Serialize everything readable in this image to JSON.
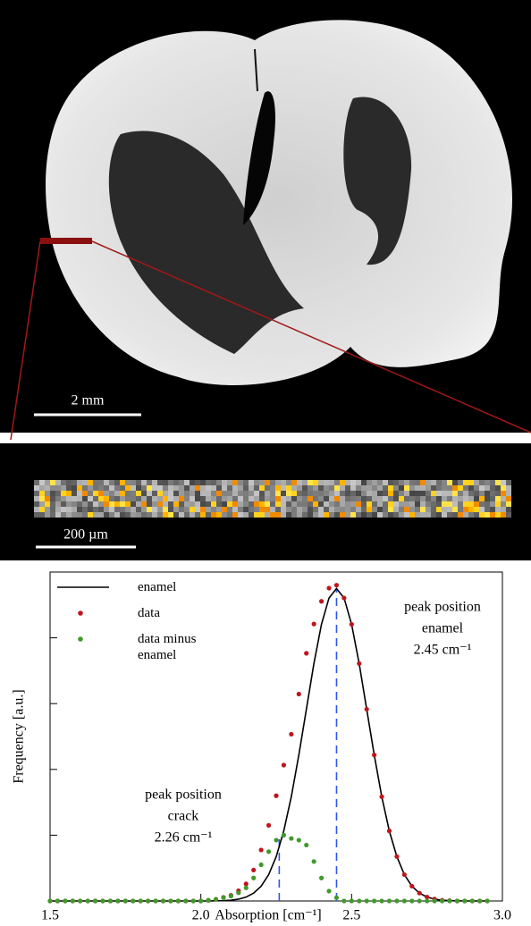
{
  "image": {
    "scale_bar": "2 mm"
  },
  "strip": {
    "scale_bar": "200 µm"
  },
  "chart_data": {
    "type": "scatter",
    "xlabel": "Absorption [cm⁻¹]",
    "ylabel": "Frequency [a.u.]",
    "xlim": [
      1.5,
      3.0
    ],
    "ylim": [
      0,
      1
    ],
    "xticks": [
      1.5,
      {
        "value": 2.0,
        "label": "2.0"
      },
      2.5,
      {
        "value": 3.0,
        "label": "3.0"
      }
    ],
    "yticks": [
      0.2,
      0.4,
      0.6,
      0.8
    ],
    "legend": "top-left",
    "x": [
      1.5,
      1.525,
      1.55,
      1.575,
      1.6,
      1.625,
      1.65,
      1.675,
      1.7,
      1.725,
      1.75,
      1.775,
      1.8,
      1.825,
      1.85,
      1.875,
      1.9,
      1.925,
      1.95,
      1.975,
      2.0,
      2.025,
      2.05,
      2.075,
      2.1,
      2.125,
      2.15,
      2.175,
      2.2,
      2.225,
      2.25,
      2.275,
      2.3,
      2.325,
      2.35,
      2.375,
      2.4,
      2.425,
      2.45,
      2.475,
      2.5,
      2.525,
      2.55,
      2.575,
      2.6,
      2.625,
      2.65,
      2.675,
      2.7,
      2.725,
      2.75,
      2.775,
      2.8,
      2.825,
      2.85,
      2.875,
      2.9,
      2.925,
      2.95
    ],
    "series": [
      {
        "name": "enamel",
        "color": "#000000",
        "style": "line",
        "values": [
          0,
          0,
          0,
          0,
          0,
          0,
          0,
          0,
          0,
          0,
          0,
          0,
          0,
          0,
          0,
          0,
          0,
          0,
          0,
          0,
          0,
          0,
          0.0004,
          0.001,
          0.0024,
          0.0055,
          0.0118,
          0.0238,
          0.045,
          0.08,
          0.135,
          0.213,
          0.317,
          0.444,
          0.583,
          0.722,
          0.841,
          0.921,
          0.95,
          0.921,
          0.841,
          0.722,
          0.583,
          0.444,
          0.317,
          0.213,
          0.135,
          0.08,
          0.045,
          0.024,
          0.012,
          0.0055,
          0.0024,
          0.001,
          0.0004,
          0,
          0,
          0,
          0
        ]
      },
      {
        "name": "data",
        "color": "#c0141c",
        "style": "dots",
        "values": [
          0,
          0,
          0,
          0,
          0,
          0,
          0,
          0,
          0,
          0,
          0,
          0,
          0,
          0,
          0,
          0,
          0,
          0,
          0,
          0,
          0,
          0.002,
          0.005,
          0.011,
          0.017,
          0.031,
          0.052,
          0.094,
          0.155,
          0.23,
          0.32,
          0.413,
          0.507,
          0.629,
          0.753,
          0.842,
          0.911,
          0.951,
          0.96,
          0.921,
          0.841,
          0.722,
          0.583,
          0.444,
          0.317,
          0.213,
          0.135,
          0.08,
          0.045,
          0.024,
          0.012,
          0.006,
          0.002,
          0.001,
          0,
          0,
          0,
          0,
          0
        ]
      },
      {
        "name": "data minus enamel",
        "color": "#3f9a2a",
        "style": "dots",
        "values": [
          0,
          0,
          0,
          0,
          0,
          0,
          0,
          0,
          0,
          0,
          0,
          0,
          0,
          0,
          0,
          0,
          0,
          0,
          0,
          0,
          0,
          0.002,
          0.005,
          0.01,
          0.015,
          0.025,
          0.04,
          0.07,
          0.11,
          0.15,
          0.185,
          0.2,
          0.19,
          0.185,
          0.17,
          0.12,
          0.07,
          0.03,
          0.01,
          0,
          0,
          0,
          0,
          0,
          0,
          0,
          0,
          0,
          0,
          0,
          0,
          0,
          0,
          0,
          0,
          0,
          0,
          0,
          0
        ]
      }
    ],
    "annotations": [
      {
        "lines": [
          "peak position",
          "enamel",
          "2.45 cm⁻¹"
        ],
        "x": 2.45,
        "y": 0.95,
        "color": "#2f55ee"
      },
      {
        "lines": [
          "peak position",
          "crack",
          "2.26 cm⁻¹"
        ],
        "x": 2.26,
        "y": 0.2,
        "color": "#2f55ee"
      }
    ]
  }
}
